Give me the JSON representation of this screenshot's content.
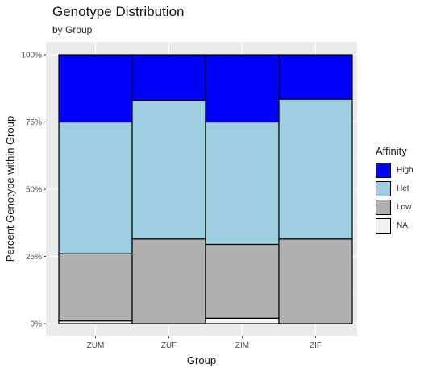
{
  "chart_data": {
    "type": "bar",
    "stacked": true,
    "title": "Genotype Distribution",
    "subtitle": "by Group",
    "xlabel": "Group",
    "ylabel": "Percent Genotype within Group",
    "categories": [
      "ZUM",
      "ZUF",
      "ZIM",
      "ZIF"
    ],
    "ylim": [
      0,
      1
    ],
    "yticks": [
      0,
      0.25,
      0.5,
      0.75,
      1
    ],
    "ytick_labels": [
      "0%",
      "25%",
      "50%",
      "75%",
      "100%"
    ],
    "series": [
      {
        "name": "NA",
        "color": "#f2f2f2",
        "values": [
          0.01,
          0.0,
          0.02,
          0.0
        ]
      },
      {
        "name": "Low",
        "color": "#b0b0b0",
        "values": [
          0.25,
          0.315,
          0.275,
          0.315
        ]
      },
      {
        "name": "Het",
        "color": "#9ecfe0",
        "values": [
          0.49,
          0.515,
          0.455,
          0.52
        ]
      },
      {
        "name": "High",
        "color": "#0000ff",
        "values": [
          0.25,
          0.17,
          0.25,
          0.165
        ]
      }
    ],
    "legend": {
      "title": "Affinity",
      "position": "right",
      "items": [
        {
          "label": "High",
          "color": "#0000ff"
        },
        {
          "label": "Het",
          "color": "#9ecfe0"
        },
        {
          "label": "Low",
          "color": "#b0b0b0"
        },
        {
          "label": "NA",
          "color": "#f2f2f2"
        }
      ]
    },
    "panel_background": "#ebebeb",
    "grid": true
  }
}
